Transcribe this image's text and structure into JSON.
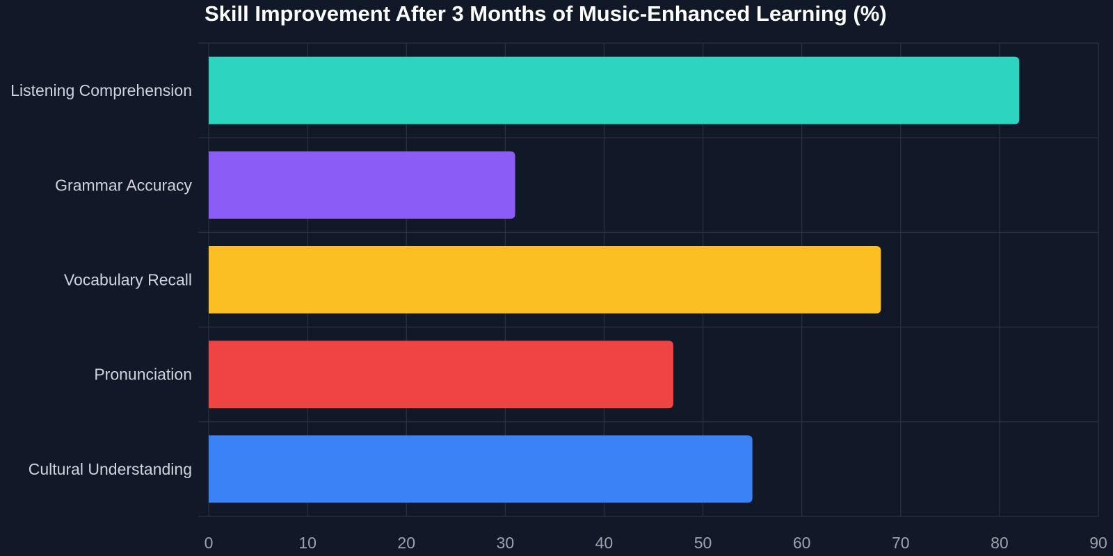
{
  "chart_data": {
    "type": "bar",
    "orientation": "horizontal",
    "title": "Skill Improvement After 3 Months of Music-Enhanced Learning (%)",
    "xlabel": "",
    "ylabel": "",
    "categories": [
      "Listening Comprehension",
      "Grammar Accuracy",
      "Vocabulary Recall",
      "Pronunciation",
      "Cultural Understanding"
    ],
    "values": [
      82,
      31,
      68,
      47,
      55
    ],
    "colors": [
      "#2dd4bf",
      "#8b5cf6",
      "#fbbf24",
      "#ef4444",
      "#3b82f6"
    ],
    "xlim": [
      0,
      90
    ],
    "xticks": [
      0,
      10,
      20,
      30,
      40,
      50,
      60,
      70,
      80,
      90
    ],
    "grid": true,
    "background": "#111827",
    "gridColor": "#2b3340"
  }
}
